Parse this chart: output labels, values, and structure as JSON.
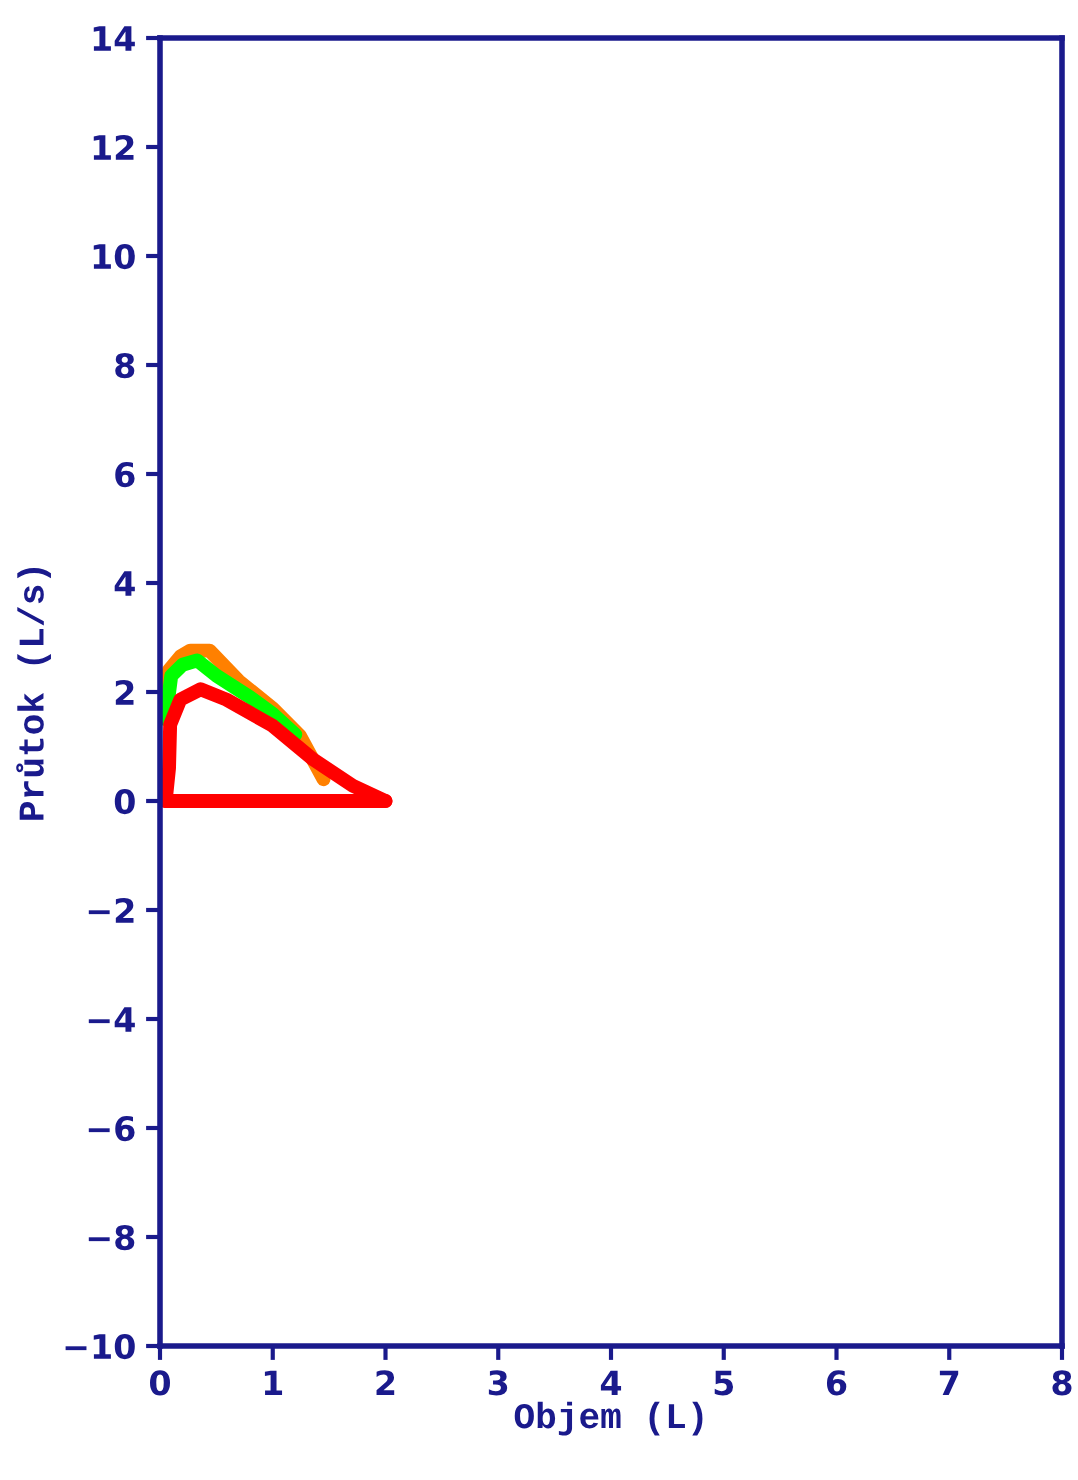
{
  "chart_data": {
    "type": "line",
    "xlabel": "Objem (L)",
    "ylabel": "Průtok (L/s)",
    "xlim": [
      0,
      8
    ],
    "xticks": [
      0,
      1,
      2,
      3,
      4,
      5,
      6,
      7,
      8
    ],
    "ylim": [
      -10,
      14
    ],
    "yticks": [
      -10,
      -8,
      -6,
      -4,
      -2,
      0,
      2,
      4,
      6,
      8,
      10,
      12,
      14
    ],
    "grid": false,
    "marker": "none",
    "line_style": "solid",
    "series": [
      {
        "color": "#ff8000",
        "x": [
          0.03,
          0.08,
          0.18,
          0.27,
          0.44,
          0.7,
          1.0,
          1.24,
          1.45
        ],
        "values": [
          1.75,
          2.4,
          2.65,
          2.76,
          2.76,
          2.2,
          1.7,
          1.2,
          0.4
        ]
      },
      {
        "color": "#00ff00",
        "x": [
          0.05,
          0.1,
          0.2,
          0.33,
          0.5,
          0.8,
          1.0,
          1.2
        ],
        "values": [
          1.5,
          2.3,
          2.5,
          2.58,
          2.3,
          1.9,
          1.6,
          1.22
        ]
      },
      {
        "color": "#ff0000",
        "x": [
          0.05,
          0.08,
          0.09,
          0.18,
          0.36,
          0.59,
          1.0,
          1.36,
          1.71,
          2.0
        ],
        "values": [
          0.0,
          0.6,
          1.4,
          1.86,
          2.05,
          1.86,
          1.38,
          0.76,
          0.28,
          0.0
        ]
      },
      {
        "color": "#ff0000",
        "x": [
          0.05,
          1.0,
          2.0
        ],
        "values": [
          0.0,
          0.0,
          0.0
        ]
      }
    ]
  }
}
